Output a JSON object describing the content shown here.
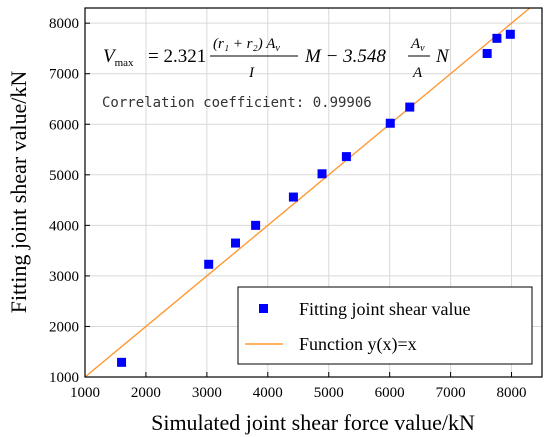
{
  "chart_data": {
    "type": "scatter",
    "xlabel": "Simulated joint shear force value/kN",
    "ylabel": "Fitting joint shear value/kN",
    "xlim": [
      1000,
      8500
    ],
    "ylim": [
      1000,
      8300
    ],
    "x_ticks": [
      1000,
      2000,
      3000,
      4000,
      5000,
      6000,
      7000,
      8000
    ],
    "y_ticks": [
      1000,
      2000,
      3000,
      4000,
      5000,
      6000,
      7000,
      8000
    ],
    "grid": true,
    "legend_position": "bottom-right",
    "series": [
      {
        "name": "Fitting joint shear value",
        "marker": "square",
        "color": "#0000ff",
        "points": [
          {
            "x": 1600,
            "y": 1290
          },
          {
            "x": 3030,
            "y": 3230
          },
          {
            "x": 3470,
            "y": 3650
          },
          {
            "x": 3800,
            "y": 4000
          },
          {
            "x": 4420,
            "y": 4560
          },
          {
            "x": 4890,
            "y": 5020
          },
          {
            "x": 5290,
            "y": 5360
          },
          {
            "x": 6010,
            "y": 6020
          },
          {
            "x": 6330,
            "y": 6340
          },
          {
            "x": 7600,
            "y": 7400
          },
          {
            "x": 7760,
            "y": 7700
          },
          {
            "x": 7980,
            "y": 7780
          }
        ]
      },
      {
        "name": "Function y(x)=x",
        "type": "line",
        "color": "#ff9933",
        "points": [
          {
            "x": 1000,
            "y": 1000
          },
          {
            "x": 8300,
            "y": 8300
          }
        ]
      }
    ],
    "annotations": {
      "formula_lhs": "V",
      "formula_lhs_sub": "max",
      "formula_coef1": "= 2.321",
      "formula_frac1_num": "(r₁ + r₂) A",
      "formula_frac1_num_sub": "v",
      "formula_frac1_den": "I",
      "formula_mid": "M − 3.548",
      "formula_frac2_num": "A",
      "formula_frac2_num_sub": "v",
      "formula_frac2_den": "A",
      "formula_end": "N",
      "correlation": "Correlation coefficient: 0.99906"
    }
  }
}
